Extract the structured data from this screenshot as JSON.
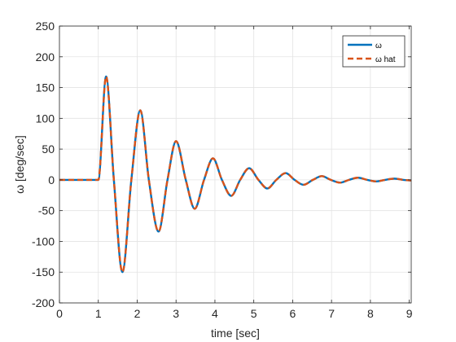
{
  "chart_data": {
    "type": "line",
    "xlabel": "time [sec]",
    "ylabel": "ω [deg/sec]",
    "xlim": [
      0,
      9.05
    ],
    "ylim": [
      -200,
      250
    ],
    "xticks": [
      "0",
      "1",
      "2",
      "3",
      "4",
      "5",
      "6",
      "7",
      "8",
      "9"
    ],
    "yticks": [
      "-200",
      "-150",
      "-100",
      "-50",
      "0",
      "50",
      "100",
      "150",
      "200",
      "250"
    ],
    "grid": true,
    "legend_position": "top-right",
    "series": [
      {
        "name": "ω",
        "color": "#0072BD",
        "style": "solid",
        "x": [
          0,
          1.0,
          1.2,
          1.4,
          1.62,
          1.85,
          2.08,
          2.3,
          2.55,
          2.78,
          3.0,
          3.25,
          3.48,
          3.72,
          3.95,
          4.18,
          4.42,
          4.65,
          4.88,
          5.12,
          5.35,
          5.58,
          5.82,
          6.05,
          6.28,
          6.52,
          6.75,
          6.98,
          7.22,
          7.45,
          7.68,
          7.92,
          8.15,
          8.38,
          8.62,
          8.85,
          9.05
        ],
        "y": [
          0,
          0,
          168,
          0,
          -150,
          0,
          113,
          0,
          -84,
          0,
          63,
          0,
          -47,
          0,
          35,
          0,
          -26,
          0,
          19,
          0,
          -14,
          0,
          11,
          0,
          -8,
          0,
          6,
          0,
          -4.5,
          0,
          3.5,
          0,
          -2.5,
          0,
          2,
          0,
          -1
        ]
      },
      {
        "name": "ω hat",
        "color": "#D95319",
        "style": "dashed",
        "x": [
          0,
          1.0,
          1.2,
          1.4,
          1.62,
          1.85,
          2.08,
          2.3,
          2.55,
          2.78,
          3.0,
          3.25,
          3.48,
          3.72,
          3.95,
          4.18,
          4.42,
          4.65,
          4.88,
          5.12,
          5.35,
          5.58,
          5.82,
          6.05,
          6.28,
          6.52,
          6.75,
          6.98,
          7.22,
          7.45,
          7.68,
          7.92,
          8.15,
          8.38,
          8.62,
          8.85,
          9.05
        ],
        "y": [
          0,
          0,
          168,
          0,
          -150,
          0,
          113,
          0,
          -84,
          0,
          63,
          0,
          -47,
          0,
          35,
          0,
          -26,
          0,
          19,
          0,
          -14,
          0,
          11,
          0,
          -8,
          0,
          6,
          0,
          -4.5,
          0,
          3.5,
          0,
          -2.5,
          0,
          2,
          0,
          -1
        ]
      }
    ]
  }
}
